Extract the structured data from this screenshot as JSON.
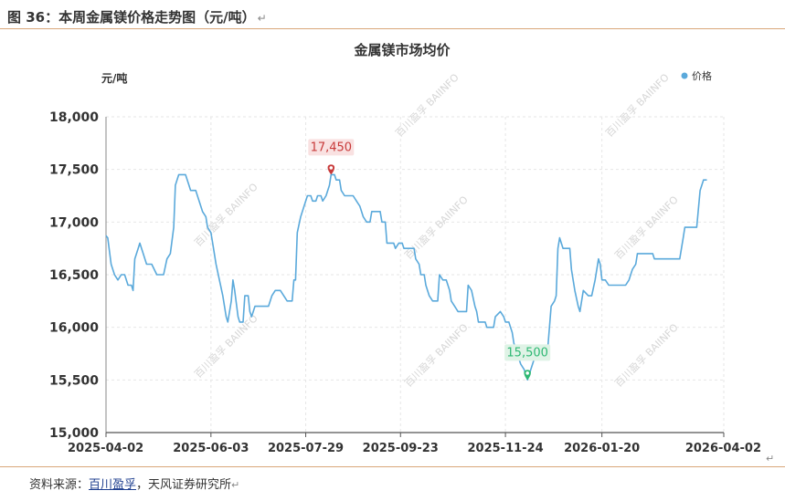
{
  "figure": {
    "title": "图 36：本周金属镁价格走势图（元/吨）",
    "source_prefix": "资料来源：",
    "source_link": "百川盈孚",
    "source_suffix": "，天风证券研究所"
  },
  "watermark": "百川盈孚 BAIINFO",
  "chart_data": {
    "type": "line",
    "title": "金属镁市场均价",
    "ylabel": "元/吨",
    "ylim": [
      15000,
      18000
    ],
    "yticks": [
      "18,000",
      "17,500",
      "17,000",
      "16,500",
      "16,000",
      "15,500",
      "15,000"
    ],
    "xlim": [
      "2025-04-02",
      "2026-04-02"
    ],
    "xticks": [
      "2025-04-02",
      "2025-06-03",
      "2025-07-29",
      "2025-09-23",
      "2025-11-24",
      "2026-01-20",
      "2026-04-02"
    ],
    "grid": true,
    "legend": "top-right",
    "colors": {
      "line": "#5aa9db",
      "max": "#c83a3a",
      "min": "#2eb873"
    },
    "series": [
      {
        "name": "价格",
        "points": [
          [
            "2025-04-02",
            16870
          ],
          [
            "2025-04-03",
            16850
          ],
          [
            "2025-04-05",
            16600
          ],
          [
            "2025-04-07",
            16500
          ],
          [
            "2025-04-09",
            16450
          ],
          [
            "2025-04-11",
            16500
          ],
          [
            "2025-04-13",
            16500
          ],
          [
            "2025-04-15",
            16400
          ],
          [
            "2025-04-17",
            16400
          ],
          [
            "2025-04-18",
            16350
          ],
          [
            "2025-04-19",
            16650
          ],
          [
            "2025-04-21",
            16750
          ],
          [
            "2025-04-22",
            16800
          ],
          [
            "2025-04-24",
            16700
          ],
          [
            "2025-04-26",
            16600
          ],
          [
            "2025-04-29",
            16600
          ],
          [
            "2025-05-02",
            16500
          ],
          [
            "2025-05-06",
            16500
          ],
          [
            "2025-05-08",
            16650
          ],
          [
            "2025-05-10",
            16700
          ],
          [
            "2025-05-12",
            16950
          ],
          [
            "2025-05-13",
            17350
          ],
          [
            "2025-05-15",
            17450
          ],
          [
            "2025-05-19",
            17450
          ],
          [
            "2025-05-21",
            17350
          ],
          [
            "2025-05-22",
            17300
          ],
          [
            "2025-05-25",
            17300
          ],
          [
            "2025-05-27",
            17200
          ],
          [
            "2025-05-29",
            17100
          ],
          [
            "2025-05-31",
            17050
          ],
          [
            "2025-06-01",
            16950
          ],
          [
            "2025-06-03",
            16900
          ],
          [
            "2025-06-04",
            16800
          ],
          [
            "2025-06-06",
            16600
          ],
          [
            "2025-06-08",
            16450
          ],
          [
            "2025-06-10",
            16300
          ],
          [
            "2025-06-12",
            16100
          ],
          [
            "2025-06-13",
            16050
          ],
          [
            "2025-06-15",
            16250
          ],
          [
            "2025-06-16",
            16450
          ],
          [
            "2025-06-17",
            16350
          ],
          [
            "2025-06-19",
            16100
          ],
          [
            "2025-06-20",
            16050
          ],
          [
            "2025-06-22",
            16050
          ],
          [
            "2025-06-23",
            16300
          ],
          [
            "2025-06-25",
            16300
          ],
          [
            "2025-06-26",
            16150
          ],
          [
            "2025-06-27",
            16100
          ],
          [
            "2025-06-29",
            16200
          ],
          [
            "2025-07-02",
            16200
          ],
          [
            "2025-07-05",
            16200
          ],
          [
            "2025-07-07",
            16200
          ],
          [
            "2025-07-09",
            16300
          ],
          [
            "2025-07-11",
            16350
          ],
          [
            "2025-07-14",
            16350
          ],
          [
            "2025-07-16",
            16300
          ],
          [
            "2025-07-18",
            16250
          ],
          [
            "2025-07-21",
            16250
          ],
          [
            "2025-07-22",
            16450
          ],
          [
            "2025-07-23",
            16450
          ],
          [
            "2025-07-24",
            16900
          ],
          [
            "2025-07-26",
            17050
          ],
          [
            "2025-07-28",
            17150
          ],
          [
            "2025-07-30",
            17250
          ],
          [
            "2025-08-01",
            17250
          ],
          [
            "2025-08-02",
            17200
          ],
          [
            "2025-08-04",
            17200
          ],
          [
            "2025-08-05",
            17250
          ],
          [
            "2025-08-07",
            17250
          ],
          [
            "2025-08-08",
            17200
          ],
          [
            "2025-08-10",
            17250
          ],
          [
            "2025-08-12",
            17350
          ],
          [
            "2025-08-13",
            17450
          ],
          [
            "2025-08-15",
            17450
          ],
          [
            "2025-08-16",
            17400
          ],
          [
            "2025-08-18",
            17400
          ],
          [
            "2025-08-19",
            17300
          ],
          [
            "2025-08-21",
            17250
          ],
          [
            "2025-08-24",
            17250
          ],
          [
            "2025-08-26",
            17250
          ],
          [
            "2025-08-28",
            17200
          ],
          [
            "2025-08-30",
            17150
          ],
          [
            "2025-09-01",
            17050
          ],
          [
            "2025-09-03",
            17000
          ],
          [
            "2025-09-05",
            17000
          ],
          [
            "2025-09-06",
            17100
          ],
          [
            "2025-09-09",
            17100
          ],
          [
            "2025-09-11",
            17100
          ],
          [
            "2025-09-12",
            17000
          ],
          [
            "2025-09-14",
            17000
          ],
          [
            "2025-09-15",
            16800
          ],
          [
            "2025-09-17",
            16800
          ],
          [
            "2025-09-19",
            16800
          ],
          [
            "2025-09-20",
            16750
          ],
          [
            "2025-09-22",
            16800
          ],
          [
            "2025-09-24",
            16800
          ],
          [
            "2025-09-25",
            16750
          ],
          [
            "2025-09-27",
            16750
          ],
          [
            "2025-10-01",
            16750
          ],
          [
            "2025-10-02",
            16650
          ],
          [
            "2025-10-04",
            16600
          ],
          [
            "2025-10-05",
            16500
          ],
          [
            "2025-10-07",
            16500
          ],
          [
            "2025-10-08",
            16400
          ],
          [
            "2025-10-10",
            16300
          ],
          [
            "2025-10-12",
            16250
          ],
          [
            "2025-10-15",
            16250
          ],
          [
            "2025-10-16",
            16500
          ],
          [
            "2025-10-18",
            16450
          ],
          [
            "2025-10-20",
            16450
          ],
          [
            "2025-10-22",
            16350
          ],
          [
            "2025-10-23",
            16250
          ],
          [
            "2025-10-25",
            16200
          ],
          [
            "2025-10-27",
            16150
          ],
          [
            "2025-10-29",
            16150
          ],
          [
            "2025-11-01",
            16150
          ],
          [
            "2025-11-02",
            16400
          ],
          [
            "2025-11-04",
            16350
          ],
          [
            "2025-11-06",
            16200
          ],
          [
            "2025-11-07",
            16150
          ],
          [
            "2025-11-08",
            16050
          ],
          [
            "2025-11-10",
            16050
          ],
          [
            "2025-11-12",
            16050
          ],
          [
            "2025-11-13",
            16000
          ],
          [
            "2025-11-15",
            16000
          ],
          [
            "2025-11-17",
            16000
          ],
          [
            "2025-11-18",
            16100
          ],
          [
            "2025-11-21",
            16150
          ],
          [
            "2025-11-23",
            16100
          ],
          [
            "2025-11-24",
            16050
          ],
          [
            "2025-11-26",
            16050
          ],
          [
            "2025-11-28",
            15950
          ],
          [
            "2025-11-29",
            15850
          ],
          [
            "2025-12-01",
            15750
          ],
          [
            "2025-12-03",
            15650
          ],
          [
            "2025-12-05",
            15600
          ],
          [
            "2025-12-07",
            15500
          ],
          [
            "2025-12-09",
            15600
          ],
          [
            "2025-12-11",
            15700
          ],
          [
            "2025-12-13",
            15700
          ],
          [
            "2025-12-15",
            15750
          ],
          [
            "2025-12-17",
            15750
          ],
          [
            "2025-12-19",
            15800
          ],
          [
            "2025-12-21",
            16200
          ],
          [
            "2025-12-23",
            16250
          ],
          [
            "2025-12-24",
            16300
          ],
          [
            "2025-12-25",
            16750
          ],
          [
            "2025-12-26",
            16850
          ],
          [
            "2025-12-28",
            16750
          ],
          [
            "2025-12-30",
            16750
          ],
          [
            "2026-01-01",
            16750
          ],
          [
            "2026-01-02",
            16550
          ],
          [
            "2026-01-04",
            16350
          ],
          [
            "2026-01-06",
            16200
          ],
          [
            "2026-01-07",
            16150
          ],
          [
            "2026-01-09",
            16350
          ],
          [
            "2026-01-12",
            16300
          ],
          [
            "2026-01-14",
            16300
          ],
          [
            "2026-01-16",
            16450
          ],
          [
            "2026-01-18",
            16650
          ],
          [
            "2026-01-19",
            16600
          ],
          [
            "2026-01-20",
            16450
          ],
          [
            "2026-01-22",
            16450
          ],
          [
            "2026-01-24",
            16400
          ],
          [
            "2026-01-27",
            16400
          ],
          [
            "2026-01-30",
            16400
          ],
          [
            "2026-02-03",
            16400
          ],
          [
            "2026-02-05",
            16450
          ],
          [
            "2026-02-07",
            16550
          ],
          [
            "2026-02-09",
            16600
          ],
          [
            "2026-02-10",
            16700
          ],
          [
            "2026-02-13",
            16700
          ],
          [
            "2026-02-16",
            16700
          ],
          [
            "2026-02-19",
            16700
          ],
          [
            "2026-02-20",
            16650
          ],
          [
            "2026-02-23",
            16650
          ],
          [
            "2026-02-26",
            16650
          ],
          [
            "2026-03-01",
            16650
          ],
          [
            "2026-03-04",
            16650
          ],
          [
            "2026-03-07",
            16650
          ],
          [
            "2026-03-09",
            16850
          ],
          [
            "2026-03-10",
            16950
          ],
          [
            "2026-03-13",
            16950
          ],
          [
            "2026-03-17",
            16950
          ],
          [
            "2026-03-19",
            17300
          ],
          [
            "2026-03-21",
            17400
          ],
          [
            "2026-03-23",
            17400
          ]
        ]
      }
    ],
    "annotations": [
      {
        "label": "17,450",
        "date": "2025-08-13",
        "value": 17450,
        "kind": "max"
      },
      {
        "label": "15,500",
        "date": "2025-12-07",
        "value": 15500,
        "kind": "min"
      }
    ]
  }
}
